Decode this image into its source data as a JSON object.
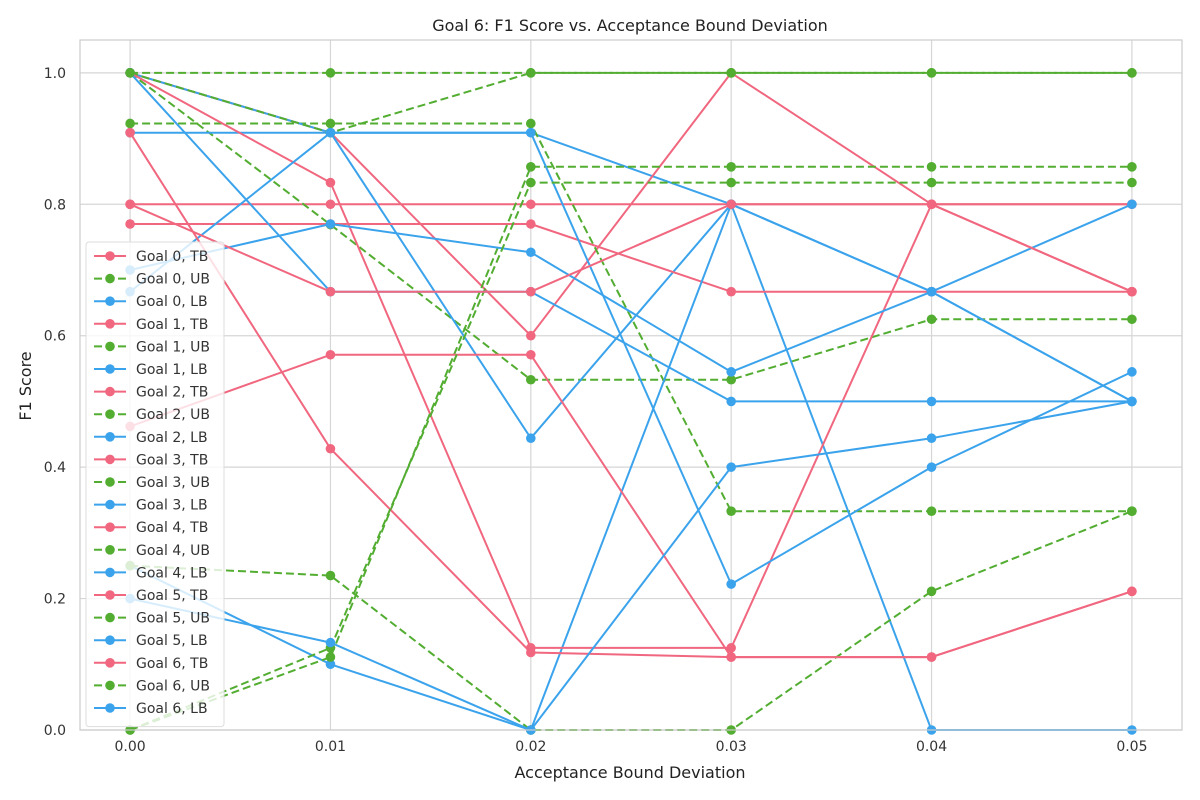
{
  "chart_data": {
    "type": "line",
    "title": "Goal 6: F1 Score vs. Acceptance Bound Deviation",
    "xlabel": "Acceptance Bound Deviation",
    "ylabel": "F1 Score",
    "x": [
      0.0,
      0.01,
      0.02,
      0.03,
      0.04,
      0.05
    ],
    "x_tick_labels": [
      "0.00",
      "0.01",
      "0.02",
      "0.03",
      "0.04",
      "0.05"
    ],
    "xlim": [
      -0.0025,
      0.0525
    ],
    "ylim": [
      0.0,
      1.05
    ],
    "y_ticks": [
      0.0,
      0.2,
      0.4,
      0.6,
      0.8,
      1.0
    ],
    "y_tick_labels": [
      "0.0",
      "0.2",
      "0.4",
      "0.6",
      "0.8",
      "1.0"
    ],
    "grid": true,
    "legend_position": "center-left",
    "colors": {
      "TB": "#f0677f",
      "UB": "#52ad31",
      "LB": "#3ba3ec"
    },
    "series": [
      {
        "name": "Goal 0, TB",
        "kind": "TB",
        "values": [
          0.8,
          0.8,
          0.8,
          0.8,
          0.8,
          0.8
        ]
      },
      {
        "name": "Goal 0, UB",
        "kind": "UB",
        "values": [
          1.0,
          0.769,
          0.533,
          0.533,
          0.625,
          0.625
        ]
      },
      {
        "name": "Goal 0, LB",
        "kind": "LB",
        "values": [
          0.909,
          0.909,
          0.909,
          0.8,
          0.667,
          0.5
        ]
      },
      {
        "name": "Goal 1, TB",
        "kind": "TB",
        "values": [
          1.0,
          0.909,
          0.6,
          1.0,
          0.8,
          0.8
        ]
      },
      {
        "name": "Goal 1, UB",
        "kind": "UB",
        "values": [
          0.923,
          0.923,
          0.923,
          0.333,
          0.333,
          0.333
        ]
      },
      {
        "name": "Goal 1, LB",
        "kind": "LB",
        "values": [
          1.0,
          0.909,
          0.444,
          0.8,
          0.0,
          0.0
        ]
      },
      {
        "name": "Goal 2, TB",
        "kind": "TB",
        "values": [
          0.77,
          0.77,
          0.77,
          0.667,
          0.667,
          0.667
        ]
      },
      {
        "name": "Goal 2, UB",
        "kind": "UB",
        "values": [
          1.0,
          0.909,
          1.0,
          1.0,
          1.0,
          1.0
        ]
      },
      {
        "name": "Goal 2, LB",
        "kind": "LB",
        "values": [
          0.25,
          0.1,
          0.0,
          0.8,
          0.667,
          0.8
        ]
      },
      {
        "name": "Goal 3, TB",
        "kind": "TB",
        "values": [
          1.0,
          0.833,
          0.125,
          0.125,
          0.8,
          0.667
        ]
      },
      {
        "name": "Goal 3, UB",
        "kind": "UB",
        "values": [
          0.0,
          0.111,
          0.857,
          0.857,
          0.857,
          0.857
        ]
      },
      {
        "name": "Goal 3, LB",
        "kind": "LB",
        "values": [
          0.667,
          0.909,
          0.909,
          0.222,
          0.4,
          0.545
        ]
      },
      {
        "name": "Goal 4, TB",
        "kind": "TB",
        "values": [
          0.909,
          0.428,
          0.118,
          0.111,
          0.111,
          0.211
        ]
      },
      {
        "name": "Goal 4, UB",
        "kind": "UB",
        "values": [
          0.25,
          0.235,
          0.0,
          0.0,
          0.211,
          0.333
        ]
      },
      {
        "name": "Goal 4, LB",
        "kind": "LB",
        "values": [
          0.7,
          0.77,
          0.727,
          0.545,
          0.667,
          0.5
        ]
      },
      {
        "name": "Goal 5, TB",
        "kind": "TB",
        "values": [
          0.462,
          0.571,
          0.571,
          0.111,
          0.111,
          0.211
        ]
      },
      {
        "name": "Goal 5, UB",
        "kind": "UB",
        "values": [
          0.0,
          0.125,
          0.833,
          0.833,
          0.833,
          0.833
        ]
      },
      {
        "name": "Goal 5, LB",
        "kind": "LB",
        "values": [
          1.0,
          0.667,
          0.667,
          0.5,
          0.5,
          0.5
        ]
      },
      {
        "name": "Goal 6, TB",
        "kind": "TB",
        "values": [
          0.8,
          0.667,
          0.667,
          0.8,
          0.8,
          0.667
        ]
      },
      {
        "name": "Goal 6, UB",
        "kind": "UB",
        "values": [
          1.0,
          1.0,
          1.0,
          1.0,
          1.0,
          1.0
        ]
      },
      {
        "name": "Goal 6, LB",
        "kind": "LB",
        "values": [
          0.2,
          0.133,
          0.0,
          0.4,
          0.444,
          0.5
        ]
      }
    ]
  }
}
